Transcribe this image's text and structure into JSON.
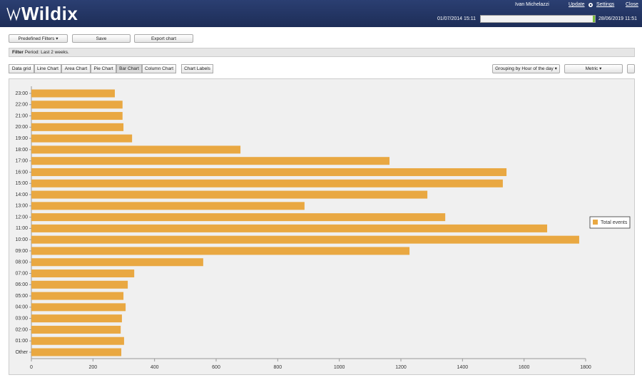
{
  "header": {
    "logo": "Wildix",
    "user": "Ivan Michelazzi",
    "links": [
      "Update",
      "Settings",
      "Close"
    ],
    "date_from": "01/07/2014 15:11",
    "date_to": "28/06/2019 11:51"
  },
  "toolbar": {
    "buttons": [
      "Predefined Filters",
      "Save",
      "Export chart"
    ]
  },
  "filter": {
    "label": "Filter",
    "text": "Period: Last 2 weeks."
  },
  "tabs": [
    "Data grid",
    "Line Chart",
    "Area Chart",
    "Pie Chart",
    "Bar Chart",
    "Column Chart"
  ],
  "chart_labels_button": "Chart Labels",
  "grouping": "Grouping by Hour of the day",
  "metric": "Metric",
  "chart_data": {
    "type": "bar",
    "orientation": "horizontal",
    "categories": [
      "23:00",
      "22:00",
      "21:00",
      "20:00",
      "19:00",
      "18:00",
      "17:00",
      "16:00",
      "15:00",
      "14:00",
      "13:00",
      "12:00",
      "11:00",
      "10:00",
      "09:00",
      "08:00",
      "07:00",
      "06:00",
      "05:00",
      "04:00",
      "03:00",
      "02:00",
      "01:00",
      "Other"
    ],
    "series": [
      {
        "name": "Total events",
        "color": "#e9a842",
        "values": [
          271,
          296,
          296,
          299,
          327,
          679,
          1163,
          1543,
          1531,
          1286,
          887,
          1344,
          1675,
          1779,
          1228,
          558,
          334,
          313,
          299,
          306,
          294,
          290,
          301,
          292
        ]
      }
    ],
    "xlim": [
      0,
      1800
    ],
    "xticks": [
      0,
      200,
      400,
      600,
      800,
      1000,
      1200,
      1400,
      1600,
      1800
    ],
    "legend": "right"
  }
}
